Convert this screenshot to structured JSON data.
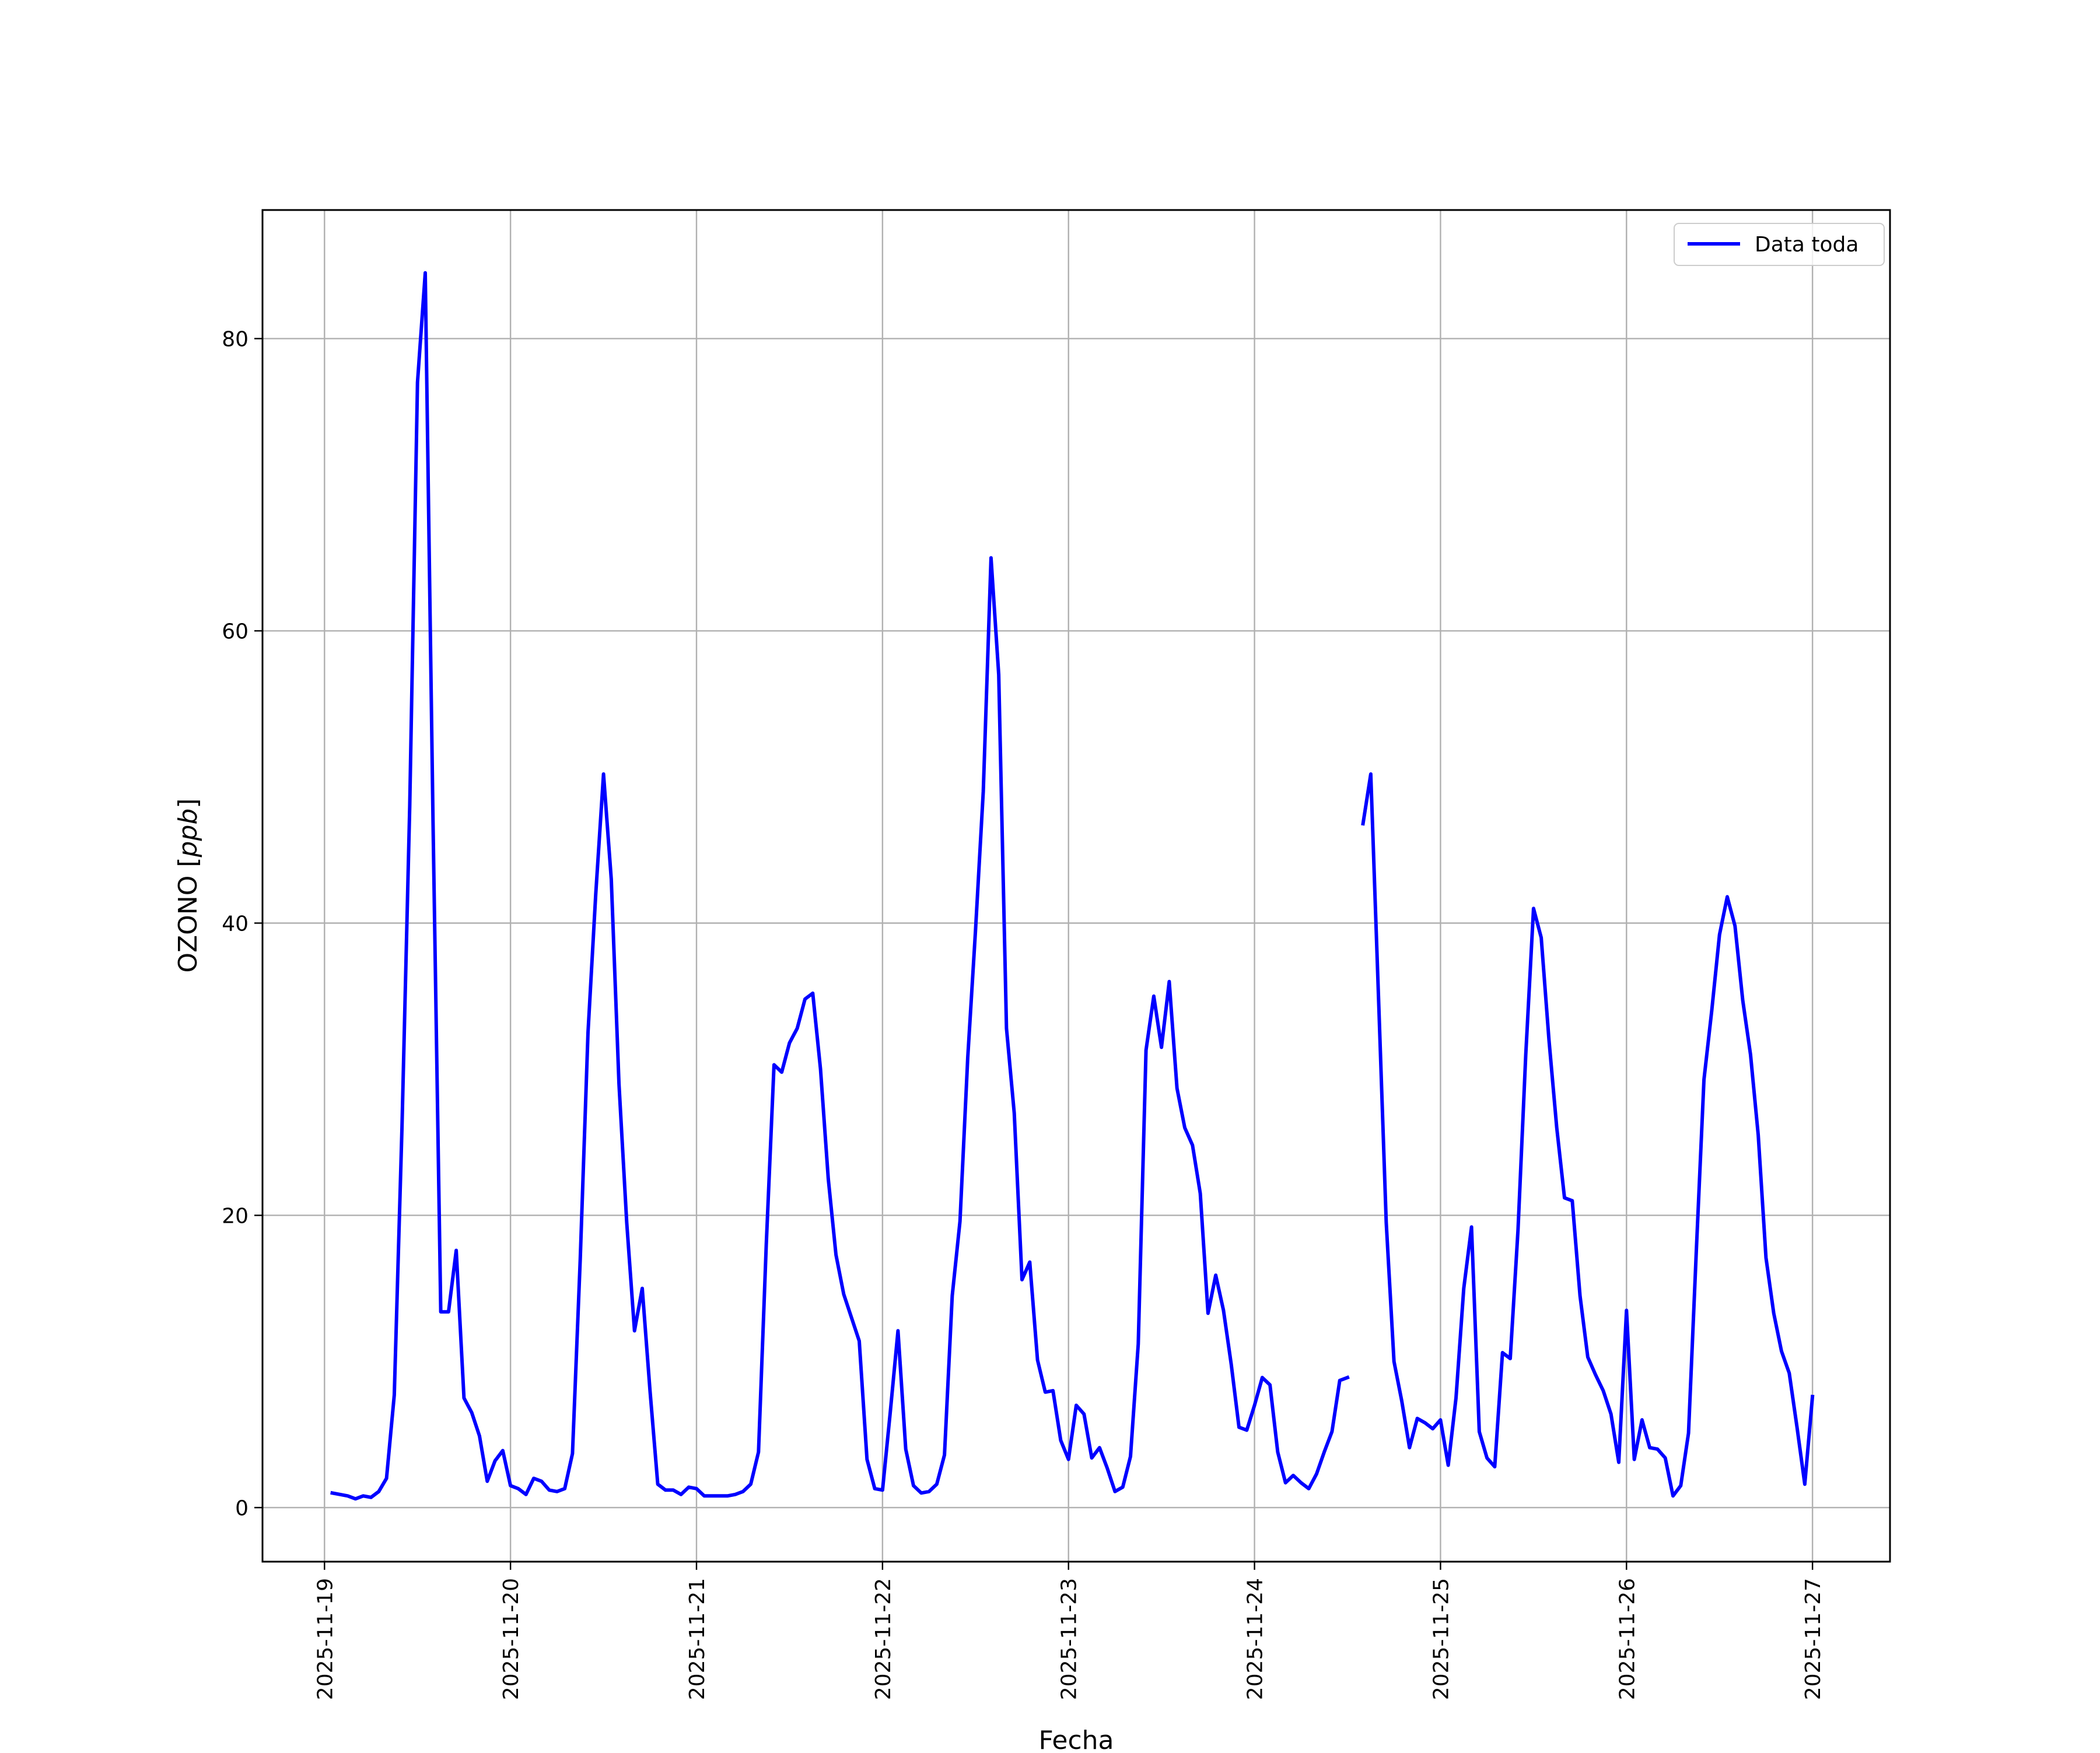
{
  "chart_data": {
    "type": "line",
    "title": "",
    "xlabel": "Fecha",
    "ylabel": "OZONO [ppb]",
    "ylabel_plain": "OZONO [",
    "ylabel_unit": "ppb",
    "ylabel_close": "]",
    "x_type": "date",
    "xlim": [
      "2025-11-18T16:00",
      "2025-11-27T10:00"
    ],
    "ylim": [
      -3.7,
      88.8
    ],
    "x_ticks": [
      "2025-11-19",
      "2025-11-20",
      "2025-11-21",
      "2025-11-22",
      "2025-11-23",
      "2025-11-24",
      "2025-11-25",
      "2025-11-26",
      "2025-11-27"
    ],
    "y_ticks": [
      0,
      20,
      40,
      60,
      80
    ],
    "grid": true,
    "legend_position": "top-right",
    "series": [
      {
        "name": "Data toda",
        "color": "#0000ff",
        "segments": [
          [
            [
              "2025-11-19T01:00",
              1.0
            ],
            [
              "2025-11-19T02:00",
              0.9
            ],
            [
              "2025-11-19T03:00",
              0.8
            ],
            [
              "2025-11-19T04:00",
              0.6
            ],
            [
              "2025-11-19T05:00",
              0.8
            ],
            [
              "2025-11-19T06:00",
              0.7
            ],
            [
              "2025-11-19T07:00",
              1.1
            ],
            [
              "2025-11-19T08:00",
              2.0
            ],
            [
              "2025-11-19T09:00",
              7.7
            ],
            [
              "2025-11-19T10:00",
              26.0
            ],
            [
              "2025-11-19T11:00",
              48.0
            ],
            [
              "2025-11-19T12:00",
              77.0
            ],
            [
              "2025-11-19T13:00",
              84.5
            ],
            [
              "2025-11-19T14:00",
              47.0
            ],
            [
              "2025-11-19T15:00",
              13.4
            ],
            [
              "2025-11-19T16:00",
              13.4
            ],
            [
              "2025-11-19T17:00",
              17.6
            ],
            [
              "2025-11-19T18:00",
              7.5
            ],
            [
              "2025-11-19T19:00",
              6.5
            ],
            [
              "2025-11-19T20:00",
              4.9
            ],
            [
              "2025-11-19T21:00",
              1.8
            ],
            [
              "2025-11-19T22:00",
              3.2
            ],
            [
              "2025-11-19T23:00",
              3.9
            ],
            [
              "2025-11-20T00:00",
              1.5
            ],
            [
              "2025-11-20T01:00",
              1.3
            ],
            [
              "2025-11-20T02:00",
              0.9
            ],
            [
              "2025-11-20T03:00",
              2.0
            ],
            [
              "2025-11-20T04:00",
              1.8
            ],
            [
              "2025-11-20T05:00",
              1.2
            ],
            [
              "2025-11-20T06:00",
              1.1
            ],
            [
              "2025-11-20T07:00",
              1.3
            ],
            [
              "2025-11-20T08:00",
              3.7
            ],
            [
              "2025-11-20T09:00",
              17.0
            ],
            [
              "2025-11-20T10:00",
              32.5
            ],
            [
              "2025-11-20T11:00",
              42.0
            ],
            [
              "2025-11-20T12:00",
              50.2
            ],
            [
              "2025-11-20T13:00",
              43.0
            ],
            [
              "2025-11-20T14:00",
              29.0
            ],
            [
              "2025-11-20T15:00",
              19.5
            ],
            [
              "2025-11-20T16:00",
              12.1
            ],
            [
              "2025-11-20T17:00",
              15.0
            ],
            [
              "2025-11-20T18:00",
              8.0
            ],
            [
              "2025-11-20T19:00",
              1.6
            ],
            [
              "2025-11-20T20:00",
              1.2
            ],
            [
              "2025-11-20T21:00",
              1.2
            ],
            [
              "2025-11-20T22:00",
              0.9
            ],
            [
              "2025-11-20T23:00",
              1.4
            ],
            [
              "2025-11-21T00:00",
              1.3
            ],
            [
              "2025-11-21T01:00",
              0.8
            ],
            [
              "2025-11-21T02:00",
              0.8
            ],
            [
              "2025-11-21T03:00",
              0.8
            ],
            [
              "2025-11-21T04:00",
              0.8
            ],
            [
              "2025-11-21T05:00",
              0.9
            ],
            [
              "2025-11-21T06:00",
              1.1
            ],
            [
              "2025-11-21T07:00",
              1.6
            ],
            [
              "2025-11-21T08:00",
              3.8
            ],
            [
              "2025-11-21T09:00",
              18.0
            ],
            [
              "2025-11-21T10:00",
              30.3
            ],
            [
              "2025-11-21T11:00",
              29.8
            ],
            [
              "2025-11-21T12:00",
              31.8
            ],
            [
              "2025-11-21T13:00",
              32.8
            ],
            [
              "2025-11-21T14:00",
              34.8
            ],
            [
              "2025-11-21T15:00",
              35.2
            ],
            [
              "2025-11-21T16:00",
              30.0
            ],
            [
              "2025-11-21T17:00",
              22.5
            ],
            [
              "2025-11-21T18:00",
              17.3
            ],
            [
              "2025-11-21T19:00",
              14.6
            ],
            [
              "2025-11-21T20:00",
              13.0
            ],
            [
              "2025-11-21T21:00",
              11.4
            ],
            [
              "2025-11-21T22:00",
              3.3
            ],
            [
              "2025-11-21T23:00",
              1.3
            ],
            [
              "2025-11-22T00:00",
              1.2
            ],
            [
              "2025-11-22T01:00",
              6.5
            ],
            [
              "2025-11-22T02:00",
              12.1
            ],
            [
              "2025-11-22T03:00",
              4.0
            ],
            [
              "2025-11-22T04:00",
              1.5
            ],
            [
              "2025-11-22T05:00",
              1.0
            ],
            [
              "2025-11-22T06:00",
              1.1
            ],
            [
              "2025-11-22T07:00",
              1.6
            ],
            [
              "2025-11-22T08:00",
              3.6
            ],
            [
              "2025-11-22T09:00",
              14.5
            ],
            [
              "2025-11-22T10:00",
              19.6
            ],
            [
              "2025-11-22T11:00",
              30.8
            ],
            [
              "2025-11-22T12:00",
              39.5
            ],
            [
              "2025-11-22T13:00",
              49.0
            ],
            [
              "2025-11-22T14:00",
              65.0
            ],
            [
              "2025-11-22T15:00",
              57.0
            ],
            [
              "2025-11-22T16:00",
              32.8
            ],
            [
              "2025-11-22T17:00",
              27.0
            ],
            [
              "2025-11-22T18:00",
              15.6
            ],
            [
              "2025-11-22T19:00",
              16.8
            ],
            [
              "2025-11-22T20:00",
              10.1
            ],
            [
              "2025-11-22T21:00",
              7.9
            ],
            [
              "2025-11-22T22:00",
              8.0
            ],
            [
              "2025-11-22T23:00",
              4.6
            ],
            [
              "2025-11-23T00:00",
              3.3
            ],
            [
              "2025-11-23T01:00",
              7.0
            ],
            [
              "2025-11-23T02:00",
              6.4
            ],
            [
              "2025-11-23T03:00",
              3.4
            ],
            [
              "2025-11-23T04:00",
              4.1
            ],
            [
              "2025-11-23T05:00",
              2.7
            ],
            [
              "2025-11-23T06:00",
              1.1
            ],
            [
              "2025-11-23T07:00",
              1.4
            ],
            [
              "2025-11-23T08:00",
              3.5
            ],
            [
              "2025-11-23T09:00",
              11.2
            ],
            [
              "2025-11-23T10:00",
              31.3
            ],
            [
              "2025-11-23T11:00",
              35.0
            ],
            [
              "2025-11-23T12:00",
              31.5
            ],
            [
              "2025-11-23T13:00",
              36.0
            ],
            [
              "2025-11-23T14:00",
              28.7
            ],
            [
              "2025-11-23T15:00",
              26.0
            ],
            [
              "2025-11-23T16:00",
              24.8
            ],
            [
              "2025-11-23T17:00",
              21.5
            ],
            [
              "2025-11-23T18:00",
              13.3
            ],
            [
              "2025-11-23T19:00",
              15.9
            ],
            [
              "2025-11-23T20:00",
              13.5
            ],
            [
              "2025-11-23T21:00",
              9.8
            ],
            [
              "2025-11-23T22:00",
              5.5
            ],
            [
              "2025-11-23T23:00",
              5.3
            ],
            [
              "2025-11-24T00:00",
              7.0
            ],
            [
              "2025-11-24T01:00",
              8.9
            ],
            [
              "2025-11-24T02:00",
              8.4
            ],
            [
              "2025-11-24T03:00",
              3.8
            ],
            [
              "2025-11-24T04:00",
              1.7
            ],
            [
              "2025-11-24T05:00",
              2.2
            ],
            [
              "2025-11-24T06:00",
              1.7
            ],
            [
              "2025-11-24T07:00",
              1.3
            ],
            [
              "2025-11-24T08:00",
              2.3
            ],
            [
              "2025-11-24T09:00",
              3.8
            ],
            [
              "2025-11-24T10:00",
              5.2
            ],
            [
              "2025-11-24T11:00",
              8.7
            ],
            [
              "2025-11-24T12:00",
              8.9
            ]
          ],
          [
            [
              "2025-11-24T14:00",
              46.8
            ],
            [
              "2025-11-24T15:00",
              50.2
            ],
            [
              "2025-11-24T16:00",
              35.0
            ],
            [
              "2025-11-24T17:00",
              19.5
            ],
            [
              "2025-11-24T18:00",
              10.0
            ],
            [
              "2025-11-24T19:00",
              7.3
            ],
            [
              "2025-11-24T20:00",
              4.1
            ],
            [
              "2025-11-24T21:00",
              6.1
            ],
            [
              "2025-11-24T22:00",
              5.8
            ],
            [
              "2025-11-24T23:00",
              5.4
            ],
            [
              "2025-11-25T00:00",
              6.0
            ],
            [
              "2025-11-25T01:00",
              2.9
            ],
            [
              "2025-11-25T02:00",
              7.5
            ],
            [
              "2025-11-25T03:00",
              15.0
            ],
            [
              "2025-11-25T04:00",
              19.2
            ],
            [
              "2025-11-25T05:00",
              5.2
            ],
            [
              "2025-11-25T06:00",
              3.4
            ],
            [
              "2025-11-25T07:00",
              2.8
            ],
            [
              "2025-11-25T08:00",
              10.6
            ],
            [
              "2025-11-25T09:00",
              10.2
            ],
            [
              "2025-11-25T10:00",
              19.0
            ],
            [
              "2025-11-25T11:00",
              31.0
            ],
            [
              "2025-11-25T12:00",
              41.0
            ],
            [
              "2025-11-25T13:00",
              39.0
            ],
            [
              "2025-11-25T14:00",
              32.0
            ],
            [
              "2025-11-25T15:00",
              26.0
            ],
            [
              "2025-11-25T16:00",
              21.2
            ],
            [
              "2025-11-25T17:00",
              21.0
            ],
            [
              "2025-11-25T18:00",
              14.5
            ],
            [
              "2025-11-25T19:00",
              10.3
            ],
            [
              "2025-11-25T20:00",
              9.1
            ],
            [
              "2025-11-25T21:00",
              8.0
            ],
            [
              "2025-11-25T22:00",
              6.4
            ],
            [
              "2025-11-25T23:00",
              3.1
            ],
            [
              "2025-11-26T00:00",
              13.5
            ],
            [
              "2025-11-26T01:00",
              3.3
            ],
            [
              "2025-11-26T02:00",
              6.0
            ],
            [
              "2025-11-26T03:00",
              4.1
            ],
            [
              "2025-11-26T04:00",
              4.0
            ],
            [
              "2025-11-26T05:00",
              3.4
            ],
            [
              "2025-11-26T06:00",
              0.8
            ],
            [
              "2025-11-26T07:00",
              1.5
            ],
            [
              "2025-11-26T08:00",
              5.1
            ],
            [
              "2025-11-26T09:00",
              17.5
            ],
            [
              "2025-11-26T10:00",
              29.3
            ],
            [
              "2025-11-26T11:00",
              34.0
            ],
            [
              "2025-11-26T12:00",
              39.2
            ],
            [
              "2025-11-26T13:00",
              41.8
            ],
            [
              "2025-11-26T14:00",
              39.8
            ],
            [
              "2025-11-26T15:00",
              34.7
            ],
            [
              "2025-11-26T16:00",
              31.0
            ],
            [
              "2025-11-26T17:00",
              25.5
            ],
            [
              "2025-11-26T18:00",
              17.1
            ],
            [
              "2025-11-26T19:00",
              13.3
            ],
            [
              "2025-11-26T20:00",
              10.7
            ],
            [
              "2025-11-26T21:00",
              9.2
            ],
            [
              "2025-11-26T22:00",
              5.5
            ],
            [
              "2025-11-26T23:00",
              1.6
            ],
            [
              "2025-11-27T00:00",
              7.6
            ]
          ]
        ]
      }
    ]
  }
}
